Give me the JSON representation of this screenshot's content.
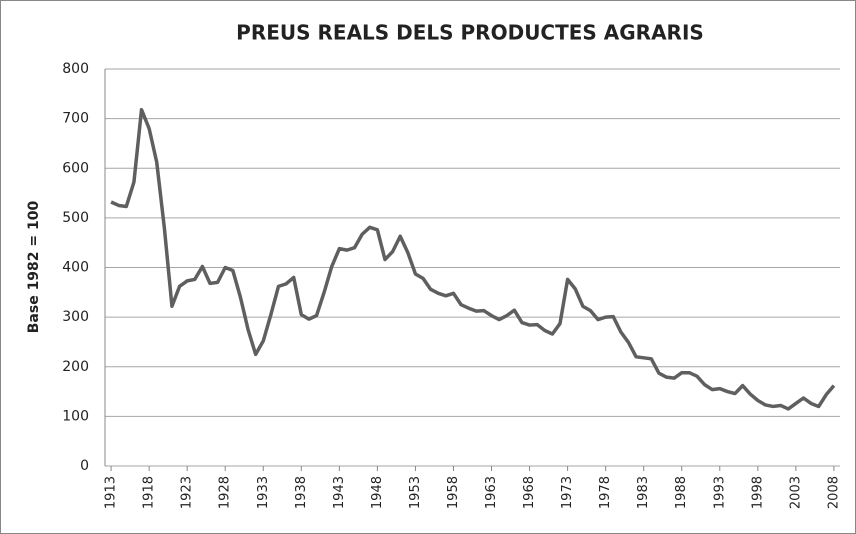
{
  "chart_data": {
    "type": "line",
    "title": "PREUS REALS DELS PRODUCTES AGRARIS",
    "y_label": "Base 1982 = 100",
    "x": [
      1913,
      1914,
      1915,
      1916,
      1917,
      1918,
      1919,
      1920,
      1921,
      1922,
      1923,
      1924,
      1925,
      1926,
      1927,
      1928,
      1929,
      1930,
      1931,
      1932,
      1933,
      1934,
      1935,
      1936,
      1937,
      1938,
      1939,
      1940,
      1941,
      1942,
      1943,
      1944,
      1945,
      1946,
      1947,
      1948,
      1949,
      1950,
      1951,
      1952,
      1953,
      1954,
      1955,
      1956,
      1957,
      1958,
      1959,
      1960,
      1961,
      1962,
      1963,
      1964,
      1965,
      1966,
      1967,
      1968,
      1969,
      1970,
      1971,
      1972,
      1973,
      1974,
      1975,
      1976,
      1977,
      1978,
      1979,
      1980,
      1981,
      1982,
      1983,
      1984,
      1985,
      1986,
      1987,
      1988,
      1989,
      1990,
      1991,
      1992,
      1993,
      1994,
      1995,
      1996,
      1997,
      1998,
      1999,
      2000,
      2001,
      2002,
      2003,
      2004,
      2005,
      2006,
      2007,
      2008
    ],
    "series": [
      {
        "color": "#5f5f5f",
        "values": [
          532,
          525,
          523,
          572,
          718,
          680,
          612,
          480,
          322,
          362,
          373,
          376,
          402,
          368,
          370,
          400,
          394,
          340,
          275,
          225,
          252,
          305,
          362,
          367,
          380,
          305,
          296,
          303,
          350,
          402,
          438,
          435,
          440,
          467,
          481,
          476,
          416,
          432,
          463,
          430,
          387,
          378,
          356,
          348,
          343,
          348,
          325,
          318,
          312,
          313,
          303,
          295,
          303,
          314,
          289,
          284,
          285,
          273,
          266,
          287,
          376,
          357,
          322,
          313,
          295,
          300,
          301,
          270,
          249,
          220,
          218,
          216,
          187,
          179,
          177,
          188,
          188,
          181,
          164,
          154,
          156,
          150,
          146,
          162,
          145,
          132,
          123,
          120,
          122,
          115,
          126,
          137,
          126,
          120,
          144,
          162
        ]
      }
    ],
    "xlim": [
      1912.2,
      2008.8
    ],
    "xticks": [
      1913,
      1918,
      1923,
      1928,
      1933,
      1938,
      1943,
      1948,
      1953,
      1958,
      1963,
      1968,
      1973,
      1978,
      1983,
      1988,
      1993,
      1998,
      2003,
      2008
    ],
    "ylim": [
      0,
      800
    ],
    "yticks": [
      0,
      100,
      200,
      300,
      400,
      500,
      600,
      700,
      800
    ],
    "grid": true
  }
}
